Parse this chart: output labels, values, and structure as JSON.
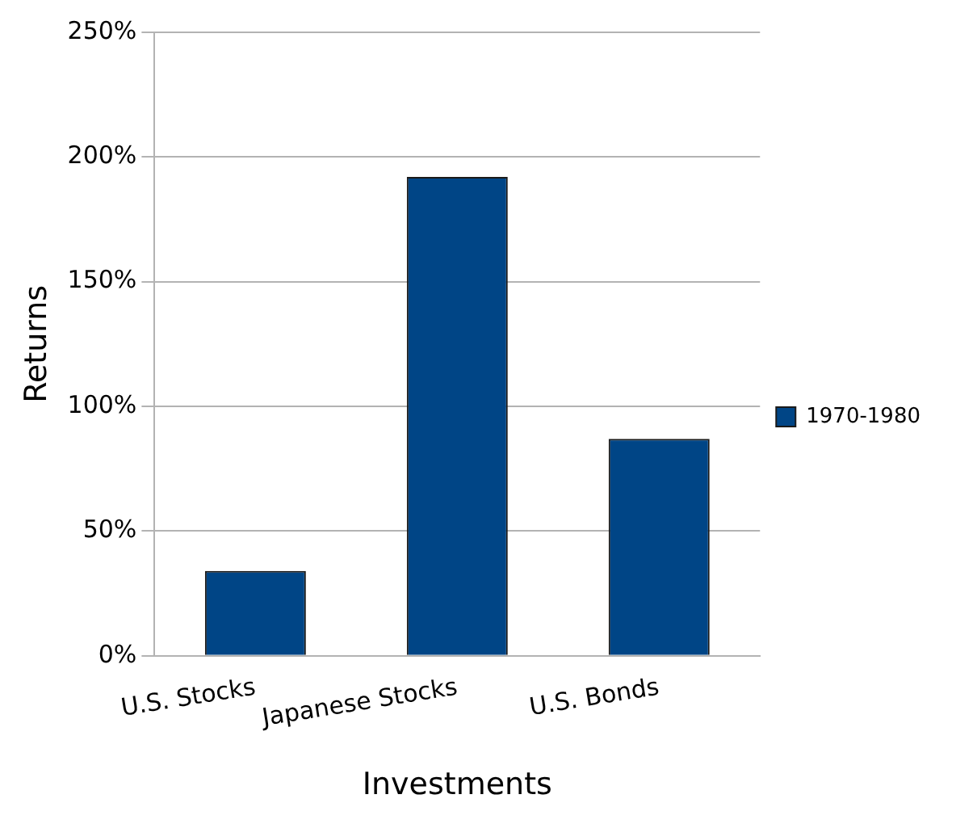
{
  "chart_data": {
    "type": "bar",
    "xlabel": "Investments",
    "ylabel": "Returns",
    "categories": [
      "U.S. Stocks",
      "Japanese Stocks",
      "U.S. Bonds"
    ],
    "series": [
      {
        "name": "1970-1980",
        "color": "#004586",
        "values": [
          34,
          192,
          87
        ]
      }
    ],
    "ylim": [
      0,
      250
    ],
    "yticks": [
      {
        "value": 0,
        "label": "0%"
      },
      {
        "value": 50,
        "label": "50%"
      },
      {
        "value": 100,
        "label": "100%"
      },
      {
        "value": 150,
        "label": "150%"
      },
      {
        "value": 200,
        "label": "200%"
      },
      {
        "value": 250,
        "label": "250%"
      }
    ],
    "grid": "y",
    "legend": "right"
  }
}
